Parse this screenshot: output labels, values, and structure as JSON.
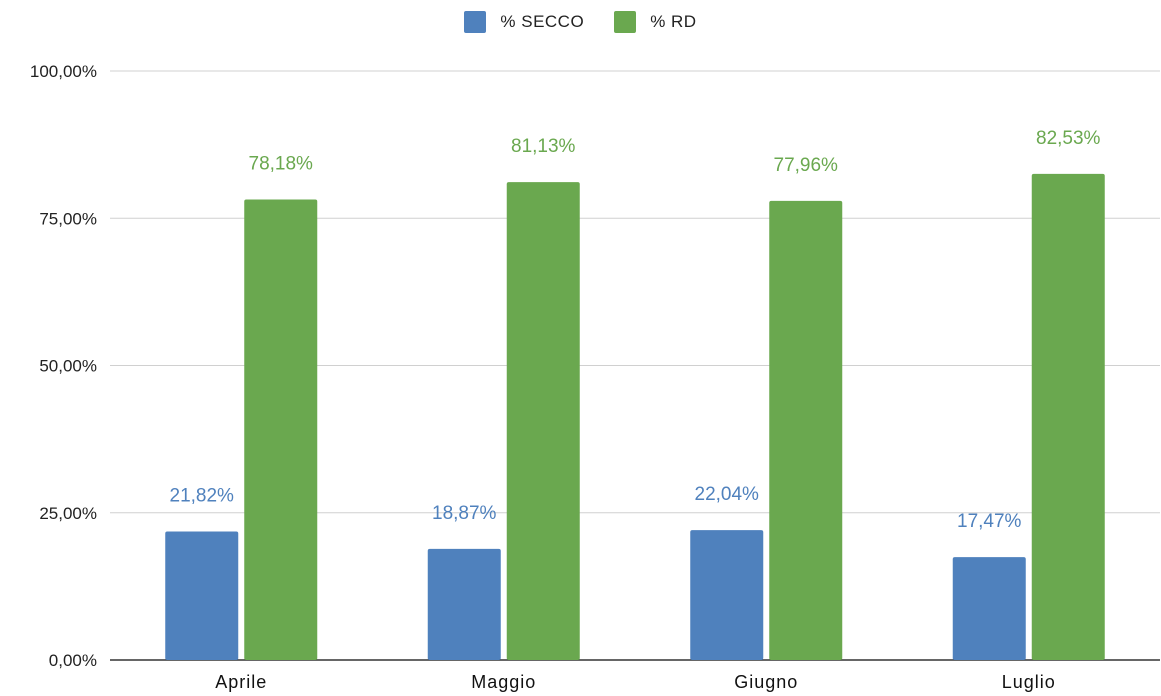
{
  "chart_data": {
    "type": "bar",
    "categories": [
      "Aprile",
      "Maggio",
      "Giugno",
      "Luglio"
    ],
    "series": [
      {
        "name": "% SECCO",
        "values": [
          21.82,
          18.87,
          22.04,
          17.47
        ],
        "labels": [
          "21,82%",
          "18,87%",
          "22,04%",
          "17,47%"
        ],
        "color": "#4f81bd"
      },
      {
        "name": "% RD",
        "values": [
          78.18,
          81.13,
          77.96,
          82.53
        ],
        "labels": [
          "78,18%",
          "81,13%",
          "77,96%",
          "82,53%"
        ],
        "color": "#6aa84f"
      }
    ],
    "ylim": [
      0,
      100
    ],
    "yticks": [
      0,
      25,
      50,
      75,
      100
    ],
    "ytick_labels": [
      "0,00%",
      "25,00%",
      "50,00%",
      "75,00%",
      "100,00%"
    ],
    "grid": true,
    "legend": "top-center",
    "title": "",
    "xlabel": "",
    "ylabel": ""
  }
}
